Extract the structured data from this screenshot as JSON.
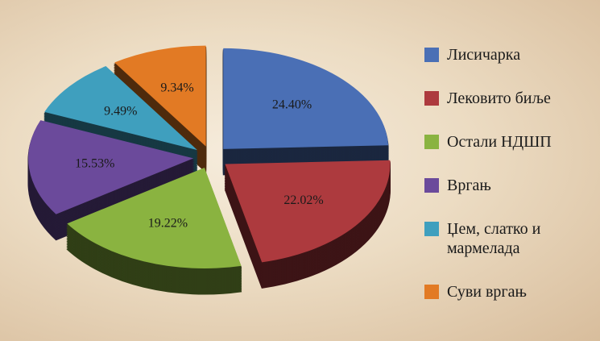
{
  "chart_data": {
    "type": "pie",
    "categories": [
      "Лисичарка",
      "Лековито биље",
      "Остали НДШП",
      "Вргањ",
      "Џем, слатко и мармелада",
      "Суви вргањ"
    ],
    "values": [
      24.4,
      22.02,
      19.22,
      15.53,
      9.49,
      9.34
    ],
    "value_labels": [
      "24.40%",
      "22.02%",
      "19.22%",
      "15.53%",
      "9.49%",
      "9.34%"
    ],
    "colors": [
      "#4a6fb5",
      "#ad3a3e",
      "#8ab340",
      "#6b4a9b",
      "#3f9fbe",
      "#e27a24"
    ]
  }
}
